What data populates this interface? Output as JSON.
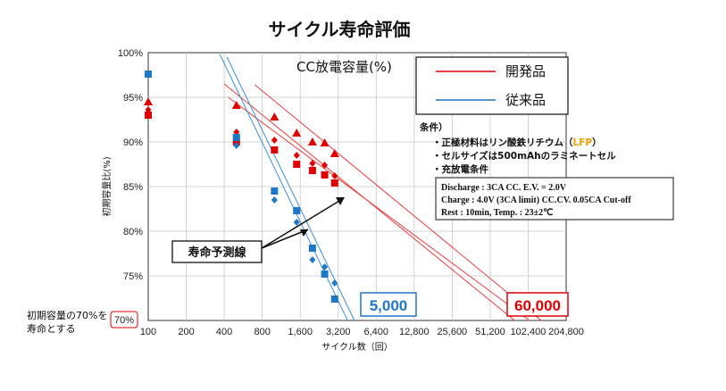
{
  "colors": {
    "new": "#e00000",
    "old": "#1f77c8",
    "lfp": "#f0a000",
    "line_new": "#ee3b3b",
    "line_old": "#3a8fd8"
  },
  "chart_data": {
    "type": "scatter",
    "title": "サイクル寿命評価",
    "subtitle": "CC放電容量(%)",
    "xlabel": "サイクル数（回）",
    "ylabel": "初期容量比(%)",
    "x_scale": "log2",
    "xlim": [
      100,
      204800
    ],
    "ylim": [
      70,
      100
    ],
    "x_ticks": [
      100,
      200,
      400,
      800,
      1600,
      3200,
      6400,
      12800,
      25600,
      51200,
      102400,
      204800
    ],
    "x_tick_labels": [
      "100",
      "200",
      "400",
      "800",
      "1,600",
      "3,200",
      "6,400",
      "12,800",
      "25,600",
      "51,200",
      "102,400",
      "204,800"
    ],
    "y_ticks": [
      75,
      80,
      85,
      90,
      95,
      100
    ],
    "y_tick_labels": [
      "75%",
      "80%",
      "85%",
      "90%",
      "95%",
      "100%"
    ],
    "y_bottom_label": "70%",
    "legend": [
      {
        "name": "開発品",
        "color": "#e00000"
      },
      {
        "name": "従来品",
        "color": "#1f77c8"
      }
    ],
    "series": [
      {
        "name": "開発品",
        "marker": "triangle",
        "color": "#e00000",
        "points": [
          [
            100,
            94.5
          ],
          [
            500,
            94.1
          ],
          [
            1000,
            92.8
          ],
          [
            1500,
            91.0
          ],
          [
            2000,
            90.0
          ],
          [
            2500,
            89.9
          ],
          [
            3000,
            88.7
          ]
        ]
      },
      {
        "name": "開発品",
        "marker": "diamond",
        "color": "#e00000",
        "points": [
          [
            100,
            93.6
          ],
          [
            500,
            91.1
          ],
          [
            1000,
            90.2
          ],
          [
            1500,
            88.5
          ],
          [
            2000,
            87.6
          ],
          [
            2500,
            87.4
          ],
          [
            3000,
            86.2
          ]
        ]
      },
      {
        "name": "開発品",
        "marker": "square",
        "color": "#e00000",
        "points": [
          [
            100,
            93.0
          ],
          [
            500,
            90.0
          ],
          [
            1000,
            89.1
          ],
          [
            1500,
            87.5
          ],
          [
            2000,
            86.8
          ],
          [
            2500,
            86.3
          ],
          [
            3000,
            85.4
          ]
        ]
      },
      {
        "name": "従来品",
        "marker": "square",
        "color": "#1f77c8",
        "points": [
          [
            100,
            97.6
          ],
          [
            500,
            90.5
          ],
          [
            1000,
            84.5
          ],
          [
            1500,
            82.3
          ],
          [
            2000,
            78.1
          ],
          [
            2500,
            75.2
          ],
          [
            3000,
            72.4
          ]
        ]
      },
      {
        "name": "従来品",
        "marker": "diamond",
        "color": "#1f77c8",
        "points": [
          [
            500,
            89.6
          ],
          [
            1000,
            83.5
          ],
          [
            1500,
            81.0
          ],
          [
            2000,
            76.8
          ],
          [
            2500,
            76.0
          ],
          [
            3000,
            74.2
          ]
        ]
      }
    ],
    "trend_lines": [
      {
        "name": "開発品",
        "color": "#ee3b3b",
        "points": [
          [
            400,
            96.5
          ],
          [
            80000,
            70.0
          ]
        ]
      },
      {
        "name": "開発品",
        "color": "#ee3b3b",
        "points": [
          [
            430,
            95.0
          ],
          [
            105000,
            70.0
          ]
        ]
      },
      {
        "name": "開発品",
        "color": "#ee3b3b",
        "points": [
          [
            700,
            96.4
          ],
          [
            130000,
            70.0
          ]
        ]
      },
      {
        "name": "従来品",
        "color": "#3a8fd8",
        "points": [
          [
            420,
            99.5
          ],
          [
            4300,
            70.0
          ]
        ]
      },
      {
        "name": "従来品",
        "color": "#3a8fd8",
        "points": [
          [
            370,
            99.8
          ],
          [
            3800,
            70.0
          ]
        ]
      }
    ],
    "annotations": {
      "life_prediction": "寿命予測線",
      "old_life": "5,000",
      "new_life": "60,000",
      "threshold_note_line1": "初期容量の70%を",
      "threshold_note_line2": "寿命とする"
    },
    "conditions": {
      "header": "条件）",
      "items": [
        "・正極材料はリン酸鉄リチウム（",
        "・セルサイズは500mAhのラミネートセル",
        "・充放電条件"
      ],
      "lfp": "LFP",
      "close_paren": "）",
      "box": [
        "Discharge : 3CA CC.  E.V. = 2.0V",
        "Charge : 4.0V (3CA limit) CC.CV.  0.05CA Cut-off",
        "Rest : 10min,  Temp. : 23±2℃"
      ]
    }
  }
}
